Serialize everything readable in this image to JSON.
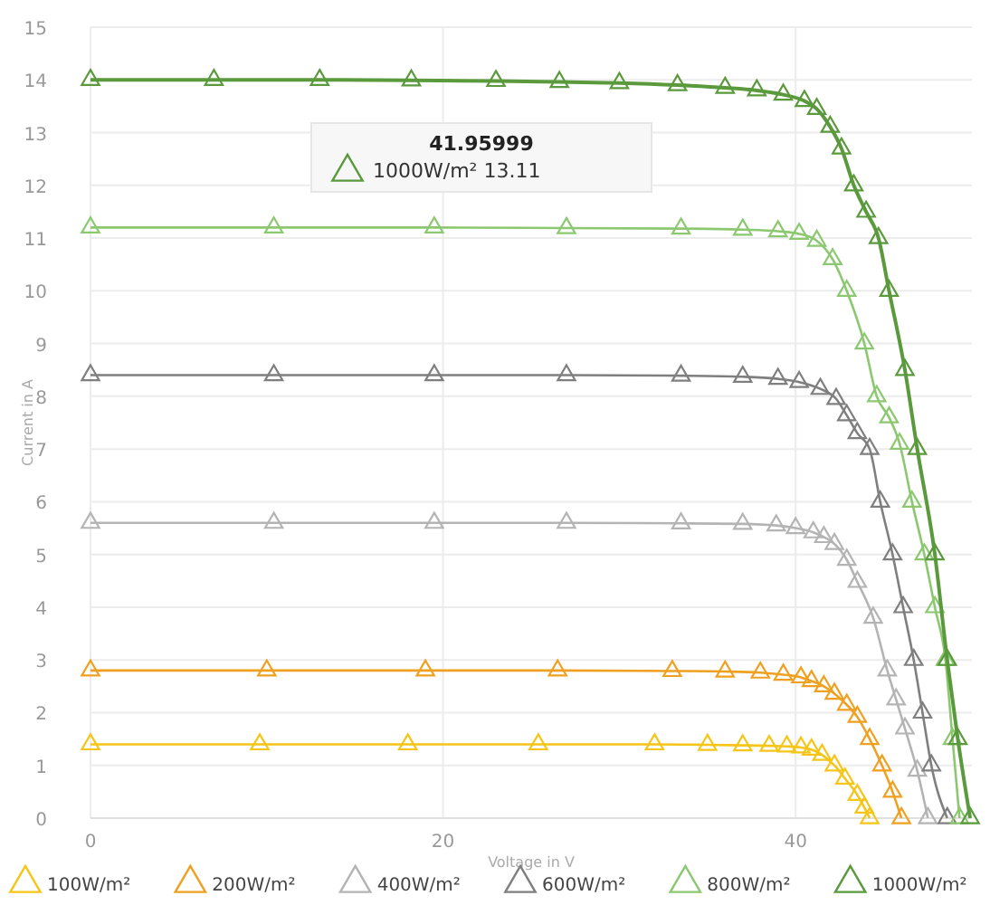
{
  "chart_data": {
    "type": "line",
    "xlabel": "Voltage in V",
    "ylabel": "Current in A",
    "xlim": [
      0,
      50
    ],
    "xticks": [
      0,
      20,
      40
    ],
    "ylim": [
      0,
      15
    ],
    "yticks": [
      0,
      1,
      2,
      3,
      4,
      5,
      6,
      7,
      8,
      9,
      10,
      11,
      12,
      13,
      14,
      15
    ],
    "grid": true,
    "legend": "bottom",
    "marker": "triangle",
    "line_style": "solid",
    "annotations": [
      "41.95999\n1000W/m² 13.11"
    ],
    "series": [
      {
        "name": "100W/m²",
        "color": "#f5c518",
        "x": [
          0,
          9.6,
          18,
          25.4,
          32,
          35,
          37,
          38.5,
          39.5,
          40.3,
          40.9,
          41.5,
          42.2,
          42.8,
          43.5,
          43.9,
          44.2
        ],
        "values": [
          1.4,
          1.4,
          1.4,
          1.4,
          1.4,
          1.39,
          1.38,
          1.37,
          1.36,
          1.34,
          1.3,
          1.2,
          1.0,
          0.75,
          0.44,
          0.2,
          0
        ]
      },
      {
        "name": "200W/m²",
        "color": "#f0a020",
        "x": [
          0,
          10,
          19,
          26.5,
          33,
          36,
          38,
          39.3,
          40.3,
          40.9,
          41.6,
          42.2,
          42.9,
          43.5,
          44.2,
          44.9,
          45.5,
          46
        ],
        "values": [
          2.8,
          2.8,
          2.8,
          2.8,
          2.79,
          2.78,
          2.76,
          2.72,
          2.67,
          2.6,
          2.5,
          2.36,
          2.15,
          1.92,
          1.5,
          1.0,
          0.5,
          0
        ]
      },
      {
        "name": "400W/m²",
        "color": "#b4b4b4",
        "x": [
          0,
          10.4,
          19.5,
          27,
          33.5,
          37,
          38.9,
          40,
          41,
          41.6,
          42.2,
          42.9,
          43.5,
          44.4,
          45.2,
          45.7,
          46.2,
          46.9,
          47.5
        ],
        "values": [
          5.6,
          5.6,
          5.6,
          5.6,
          5.59,
          5.58,
          5.55,
          5.5,
          5.42,
          5.33,
          5.2,
          4.9,
          4.48,
          3.8,
          2.8,
          2.25,
          1.7,
          0.9,
          0
        ]
      },
      {
        "name": "600W/m²",
        "color": "#7f7f7f",
        "x": [
          0,
          10.4,
          19.5,
          27,
          33.5,
          37,
          39,
          40.2,
          41.4,
          42.3,
          42.9,
          43.5,
          44.2,
          44.8,
          45.5,
          46.1,
          46.7,
          47.2,
          47.7,
          48.6
        ],
        "values": [
          8.4,
          8.4,
          8.4,
          8.4,
          8.39,
          8.37,
          8.33,
          8.27,
          8.14,
          7.95,
          7.64,
          7.3,
          7.0,
          6.0,
          5.0,
          4.0,
          3.0,
          2.0,
          1.0,
          0
        ]
      },
      {
        "name": "800W/m²",
        "color": "#8cc870",
        "x": [
          0,
          10.4,
          19.5,
          27,
          33.5,
          37,
          39,
          40.2,
          41.2,
          42.1,
          42.9,
          43.9,
          44.6,
          45.3,
          45.9,
          46.6,
          47.3,
          47.9,
          48.5,
          48.9,
          49.3
        ],
        "values": [
          11.2,
          11.2,
          11.2,
          11.19,
          11.18,
          11.16,
          11.13,
          11.08,
          10.95,
          10.6,
          10.0,
          9.0,
          8.0,
          7.6,
          7.1,
          6.0,
          5.0,
          4.0,
          3.0,
          1.5,
          0
        ]
      },
      {
        "name": "1000W/m²",
        "color": "#5a9a3c",
        "x": [
          0,
          7,
          13,
          18.2,
          23,
          26.6,
          30,
          33.3,
          36,
          37.8,
          39.3,
          40.5,
          41.2,
          41.95999,
          42.6,
          43.3,
          44,
          44.7,
          45.3,
          46.2,
          46.9,
          47.9,
          48.6,
          49.2,
          49.9
        ],
        "values": [
          14.0,
          14.0,
          14.0,
          13.99,
          13.98,
          13.96,
          13.94,
          13.9,
          13.85,
          13.8,
          13.72,
          13.6,
          13.45,
          13.11,
          12.7,
          12.0,
          11.5,
          11.0,
          10.0,
          8.5,
          7.0,
          5.0,
          3.0,
          1.5,
          0
        ]
      }
    ]
  }
}
